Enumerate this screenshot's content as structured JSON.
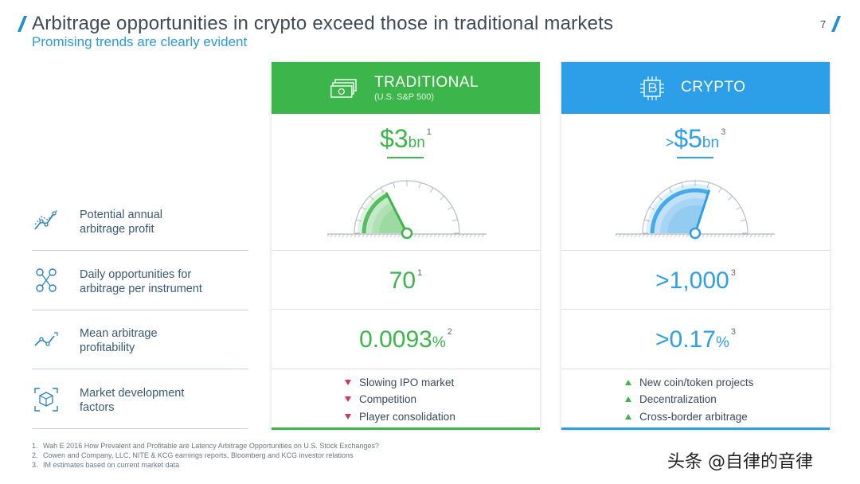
{
  "header": {
    "title": "Arbitrage opportunities in crypto exceed those in traditional markets",
    "subtitle": "Promising trends are clearly evident",
    "page_number": "7"
  },
  "rows": [
    {
      "icon": "trend-chart-icon",
      "label_line1": "Potential annual",
      "label_line2": "arbitrage profit"
    },
    {
      "icon": "network-nodes-icon",
      "label_line1": "Daily opportunities for",
      "label_line2": "arbitrage per instrument"
    },
    {
      "icon": "profit-line-icon",
      "label_line1": "Mean arbitrage",
      "label_line2": "profitability"
    },
    {
      "icon": "cube-frame-icon",
      "label_line1": "Market development",
      "label_line2": "factors"
    }
  ],
  "traditional": {
    "name": "TRADITIONAL",
    "sub": "(U.S. S&P 500)",
    "icon": "cash-stack-icon",
    "accent": "#3cb54a",
    "profit_prefix": "",
    "profit_value": "$3",
    "profit_unit": "bn",
    "profit_note": "1",
    "gauge_level": 0.35,
    "daily_value": "70",
    "daily_note": "1",
    "mean_value": "0.0093",
    "mean_unit": "%",
    "mean_note": "2",
    "factors": [
      "Slowing IPO market",
      "Competition",
      "Player consolidation"
    ],
    "factor_color": "#d6325a"
  },
  "crypto": {
    "name": "CRYPTO",
    "icon": "bitcoin-chip-icon",
    "accent": "#2d9ee8",
    "profit_prefix": ">",
    "profit_value": "$5",
    "profit_unit": "bn",
    "profit_note": "3",
    "gauge_level": 0.6,
    "daily_value": ">1,000",
    "daily_note": "3",
    "mean_value": ">0.17",
    "mean_unit": "%",
    "mean_note": "3",
    "factors": [
      "New coin/token projects",
      "Decentralization",
      "Cross-border arbitrage"
    ],
    "factor_color": "#3cb54a"
  },
  "footnotes": [
    {
      "num": "1.",
      "text": "Wah E 2016 How Prevalent and Profitable are Latency Arbitrage Opportunities on U.S. Stock Exchanges?"
    },
    {
      "num": "2.",
      "text": "Cowen and Company, LLC, NITE & KCG earnings reports, Bloomberg and KCG investor relations"
    },
    {
      "num": "3.",
      "text": "IM estimates based on current market data"
    }
  ],
  "watermark": "头条 @自律的音律"
}
